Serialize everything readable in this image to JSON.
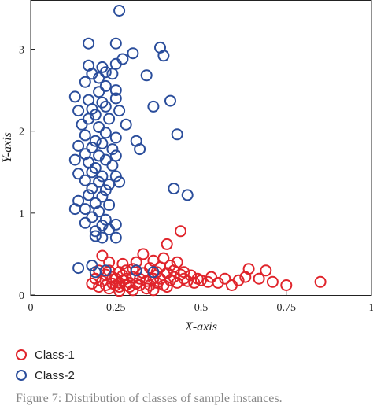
{
  "chart_data": {
    "type": "scatter",
    "title": "",
    "xlabel": "X-axis",
    "ylabel": "Y-axis",
    "xlim": [
      0,
      1
    ],
    "ylim": [
      0,
      3.6
    ],
    "xticks": [
      "0",
      "0.25",
      "0.5",
      "0.75",
      "1"
    ],
    "yticks": [
      "0",
      "1",
      "2",
      "3"
    ],
    "grid": false,
    "legend": "bottom-left below plot",
    "series": [
      {
        "name": "Class-1",
        "color": "#e0242b",
        "points": [
          [
            0.18,
            0.14
          ],
          [
            0.19,
            0.2
          ],
          [
            0.2,
            0.3
          ],
          [
            0.21,
            0.17
          ],
          [
            0.22,
            0.25
          ],
          [
            0.22,
            0.12
          ],
          [
            0.23,
            0.4
          ],
          [
            0.23,
            0.3
          ],
          [
            0.24,
            0.14
          ],
          [
            0.24,
            0.22
          ],
          [
            0.25,
            0.12
          ],
          [
            0.25,
            0.2
          ],
          [
            0.26,
            0.15
          ],
          [
            0.26,
            0.28
          ],
          [
            0.26,
            0.1
          ],
          [
            0.27,
            0.18
          ],
          [
            0.27,
            0.24
          ],
          [
            0.28,
            0.12
          ],
          [
            0.28,
            0.2
          ],
          [
            0.28,
            0.3
          ],
          [
            0.29,
            0.15
          ],
          [
            0.29,
            0.1
          ],
          [
            0.3,
            0.22
          ],
          [
            0.3,
            0.32
          ],
          [
            0.31,
            0.14
          ],
          [
            0.31,
            0.4
          ],
          [
            0.32,
            0.2
          ],
          [
            0.32,
            0.12
          ],
          [
            0.33,
            0.27
          ],
          [
            0.33,
            0.5
          ],
          [
            0.34,
            0.17
          ],
          [
            0.35,
            0.33
          ],
          [
            0.35,
            0.12
          ],
          [
            0.36,
            0.2
          ],
          [
            0.36,
            0.42
          ],
          [
            0.37,
            0.28
          ],
          [
            0.37,
            0.15
          ],
          [
            0.38,
            0.34
          ],
          [
            0.38,
            0.2
          ],
          [
            0.39,
            0.45
          ],
          [
            0.39,
            0.12
          ],
          [
            0.4,
            0.62
          ],
          [
            0.4,
            0.27
          ],
          [
            0.41,
            0.36
          ],
          [
            0.41,
            0.18
          ],
          [
            0.42,
            0.22
          ],
          [
            0.42,
            0.3
          ],
          [
            0.43,
            0.15
          ],
          [
            0.43,
            0.4
          ],
          [
            0.44,
            0.25
          ],
          [
            0.44,
            0.78
          ],
          [
            0.45,
            0.2
          ],
          [
            0.45,
            0.28
          ],
          [
            0.46,
            0.17
          ],
          [
            0.47,
            0.24
          ],
          [
            0.48,
            0.15
          ],
          [
            0.49,
            0.2
          ],
          [
            0.5,
            0.18
          ],
          [
            0.52,
            0.16
          ],
          [
            0.53,
            0.22
          ],
          [
            0.55,
            0.15
          ],
          [
            0.57,
            0.2
          ],
          [
            0.59,
            0.12
          ],
          [
            0.61,
            0.18
          ],
          [
            0.63,
            0.22
          ],
          [
            0.64,
            0.32
          ],
          [
            0.67,
            0.2
          ],
          [
            0.69,
            0.3
          ],
          [
            0.71,
            0.16
          ],
          [
            0.75,
            0.12
          ],
          [
            0.85,
            0.16
          ],
          [
            0.21,
            0.48
          ],
          [
            0.27,
            0.38
          ],
          [
            0.34,
            0.08
          ],
          [
            0.23,
            0.08
          ],
          [
            0.3,
            0.06
          ],
          [
            0.26,
            0.05
          ],
          [
            0.2,
            0.1
          ],
          [
            0.36,
            0.06
          ],
          [
            0.4,
            0.1
          ]
        ]
      },
      {
        "name": "Class-2",
        "color": "#2a4d9b",
        "points": [
          [
            0.26,
            3.47
          ],
          [
            0.17,
            3.07
          ],
          [
            0.25,
            3.07
          ],
          [
            0.38,
            3.02
          ],
          [
            0.39,
            2.92
          ],
          [
            0.27,
            2.88
          ],
          [
            0.3,
            2.95
          ],
          [
            0.17,
            2.8
          ],
          [
            0.21,
            2.78
          ],
          [
            0.25,
            2.82
          ],
          [
            0.18,
            2.7
          ],
          [
            0.2,
            2.65
          ],
          [
            0.22,
            2.72
          ],
          [
            0.24,
            2.7
          ],
          [
            0.34,
            2.68
          ],
          [
            0.16,
            2.6
          ],
          [
            0.22,
            2.55
          ],
          [
            0.25,
            2.5
          ],
          [
            0.2,
            2.48
          ],
          [
            0.13,
            2.42
          ],
          [
            0.17,
            2.38
          ],
          [
            0.21,
            2.35
          ],
          [
            0.25,
            2.4
          ],
          [
            0.14,
            2.25
          ],
          [
            0.18,
            2.27
          ],
          [
            0.22,
            2.3
          ],
          [
            0.26,
            2.25
          ],
          [
            0.36,
            2.3
          ],
          [
            0.41,
            2.37
          ],
          [
            0.17,
            2.15
          ],
          [
            0.19,
            2.2
          ],
          [
            0.23,
            2.15
          ],
          [
            0.15,
            2.08
          ],
          [
            0.2,
            2.05
          ],
          [
            0.28,
            2.08
          ],
          [
            0.43,
            1.96
          ],
          [
            0.16,
            1.95
          ],
          [
            0.22,
            1.98
          ],
          [
            0.25,
            1.92
          ],
          [
            0.19,
            1.88
          ],
          [
            0.31,
            1.88
          ],
          [
            0.14,
            1.82
          ],
          [
            0.18,
            1.8
          ],
          [
            0.21,
            1.85
          ],
          [
            0.24,
            1.78
          ],
          [
            0.32,
            1.78
          ],
          [
            0.16,
            1.72
          ],
          [
            0.2,
            1.7
          ],
          [
            0.25,
            1.7
          ],
          [
            0.13,
            1.65
          ],
          [
            0.17,
            1.62
          ],
          [
            0.22,
            1.65
          ],
          [
            0.19,
            1.55
          ],
          [
            0.24,
            1.58
          ],
          [
            0.14,
            1.48
          ],
          [
            0.18,
            1.5
          ],
          [
            0.21,
            1.45
          ],
          [
            0.25,
            1.45
          ],
          [
            0.16,
            1.4
          ],
          [
            0.2,
            1.38
          ],
          [
            0.23,
            1.35
          ],
          [
            0.26,
            1.38
          ],
          [
            0.18,
            1.3
          ],
          [
            0.22,
            1.28
          ],
          [
            0.42,
            1.3
          ],
          [
            0.17,
            1.22
          ],
          [
            0.21,
            1.2
          ],
          [
            0.46,
            1.22
          ],
          [
            0.14,
            1.15
          ],
          [
            0.19,
            1.12
          ],
          [
            0.23,
            1.1
          ],
          [
            0.16,
            1.05
          ],
          [
            0.2,
            1.02
          ],
          [
            0.13,
            1.05
          ],
          [
            0.18,
            0.95
          ],
          [
            0.22,
            0.92
          ],
          [
            0.16,
            0.88
          ],
          [
            0.21,
            0.85
          ],
          [
            0.25,
            0.86
          ],
          [
            0.19,
            0.78
          ],
          [
            0.23,
            0.8
          ],
          [
            0.19,
            0.72
          ],
          [
            0.21,
            0.7
          ],
          [
            0.25,
            0.7
          ],
          [
            0.18,
            0.36
          ],
          [
            0.19,
            0.28
          ],
          [
            0.14,
            0.33
          ],
          [
            0.36,
            0.28
          ],
          [
            0.31,
            0.3
          ],
          [
            0.22,
            0.3
          ]
        ]
      }
    ]
  },
  "legend": {
    "items": [
      {
        "label": "Class-1",
        "color": "#e0242b"
      },
      {
        "label": "Class-2",
        "color": "#2a4d9b"
      }
    ]
  },
  "caption": "Figure 7: Distribution of classes of sample instances."
}
